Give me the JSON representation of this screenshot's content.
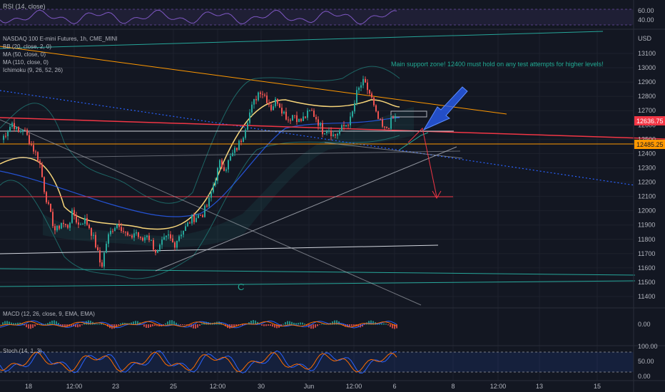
{
  "chart_data": {
    "type": "candlestick",
    "title": "NASDAQ 100 E-mini Futures, 1h, CME_MINI",
    "currency": "USD",
    "indicators": [
      "BB (20, close, 2, 0)",
      "MA (50, close, 0)",
      "MA (110, close, 0)",
      "Ichimoku (9, 26, 52, 26)"
    ],
    "price_axis": [
      13100,
      13000,
      12900,
      12800,
      12700,
      12600,
      12500,
      12400,
      12300,
      12200,
      12100,
      12000,
      11900,
      11800,
      11700,
      11600,
      11500,
      11400
    ],
    "price_range": [
      11380,
      13180
    ],
    "price_badges": [
      {
        "value": "12636.75",
        "color": "#f23645"
      },
      {
        "value": "12485.25",
        "color": "#ff9800"
      }
    ],
    "time_axis": [
      "18",
      "12:00",
      "23",
      "25",
      "12:00",
      "30",
      "Jun",
      "12:00",
      "6",
      "8",
      "12:00",
      "13",
      "15"
    ],
    "annotation": "Main support zone! 12400 must hold on any test attempts for higher levels!",
    "wave_label": "C",
    "rsi": {
      "label": "RSI (14, close)",
      "axis": [
        "60.00",
        "40.00"
      ]
    },
    "macd": {
      "label": "MACD (12, 26, close, 9, EMA, EMA)",
      "axis": [
        "0.00"
      ]
    },
    "stoch": {
      "label": "Stoch (14, 1, 3)",
      "axis": [
        "100.00",
        "50.00",
        "0.00"
      ]
    },
    "approx_close_path": [
      [
        0,
        12480
      ],
      [
        10,
        12560
      ],
      [
        18,
        12620
      ],
      [
        25,
        12540
      ],
      [
        32,
        12580
      ],
      [
        40,
        12500
      ],
      [
        48,
        12420
      ],
      [
        55,
        12350
      ],
      [
        62,
        12150
      ],
      [
        70,
        11980
      ],
      [
        78,
        11850
      ],
      [
        86,
        11920
      ],
      [
        94,
        11880
      ],
      [
        102,
        11990
      ],
      [
        110,
        11900
      ],
      [
        118,
        11940
      ],
      [
        126,
        11880
      ],
      [
        134,
        11760
      ],
      [
        142,
        11600
      ],
      [
        150,
        11800
      ],
      [
        158,
        11880
      ],
      [
        166,
        11920
      ],
      [
        174,
        11850
      ],
      [
        182,
        11800
      ],
      [
        190,
        11860
      ],
      [
        198,
        11780
      ],
      [
        206,
        11840
      ],
      [
        214,
        11760
      ],
      [
        220,
        11700
      ],
      [
        228,
        11780
      ],
      [
        236,
        11820
      ],
      [
        244,
        11760
      ],
      [
        252,
        11840
      ],
      [
        260,
        11880
      ],
      [
        268,
        11940
      ],
      [
        276,
        11960
      ],
      [
        284,
        11980
      ],
      [
        292,
        12050
      ],
      [
        300,
        12200
      ],
      [
        308,
        12330
      ],
      [
        316,
        12300
      ],
      [
        324,
        12380
      ],
      [
        332,
        12440
      ],
      [
        340,
        12520
      ],
      [
        348,
        12660
      ],
      [
        356,
        12760
      ],
      [
        364,
        12850
      ],
      [
        372,
        12800
      ],
      [
        380,
        12720
      ],
      [
        388,
        12780
      ],
      [
        396,
        12700
      ],
      [
        404,
        12640
      ],
      [
        412,
        12680
      ],
      [
        420,
        12620
      ],
      [
        428,
        12660
      ],
      [
        436,
        12700
      ],
      [
        444,
        12640
      ],
      [
        452,
        12560
      ],
      [
        460,
        12580
      ],
      [
        468,
        12520
      ],
      [
        476,
        12560
      ],
      [
        484,
        12600
      ],
      [
        492,
        12640
      ],
      [
        500,
        12820
      ],
      [
        508,
        12900
      ],
      [
        514,
        12860
      ],
      [
        520,
        12800
      ],
      [
        526,
        12680
      ],
      [
        532,
        12620
      ],
      [
        538,
        12560
      ],
      [
        544,
        12590
      ],
      [
        550,
        12640
      ],
      [
        556,
        12660
      ]
    ]
  }
}
